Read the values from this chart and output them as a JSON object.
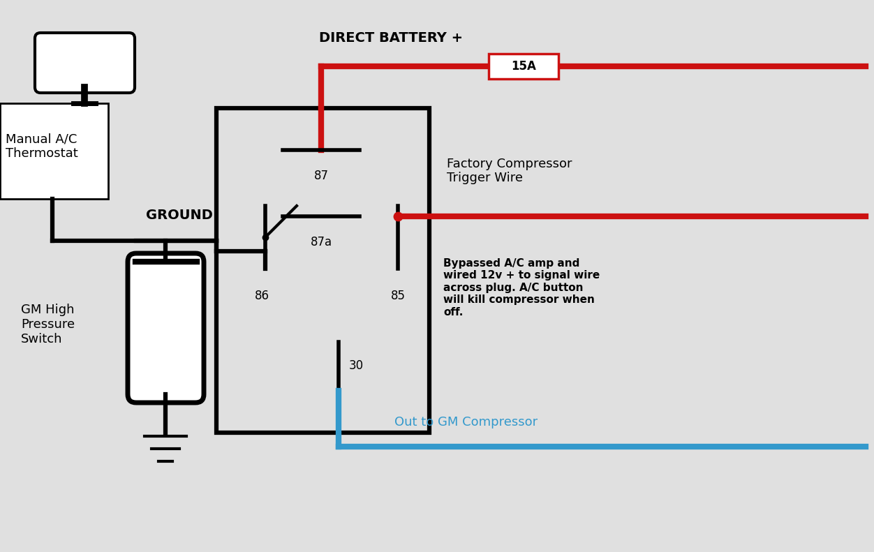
{
  "bg_color": "#e0e0e0",
  "colors": {
    "red": "#cc1111",
    "blue": "#3399cc",
    "black": "#000000",
    "white": "#ffffff",
    "gray": "#e0e0e0"
  },
  "fuse_label": "15A",
  "labels": {
    "battery": "DIRECT BATTERY +",
    "thermostat_line1": "Manual A/C",
    "thermostat_line2": "Thermostat",
    "ground": "GROUND",
    "trigger_line1": "Factory Compressor",
    "trigger_line2": "Trigger Wire",
    "bypass_note": "Bypassed A/C amp and\nwired 12v + to signal wire\nacross plug. A/C button\nwill kill compressor when\noff.",
    "compressor_out": "Out to GM Compressor",
    "pressure_switch": "GM High\nPressure\nSwitch",
    "pin87": "87",
    "pin87a": "87a",
    "pin86": "86",
    "pin85": "85",
    "pin30": "30"
  }
}
